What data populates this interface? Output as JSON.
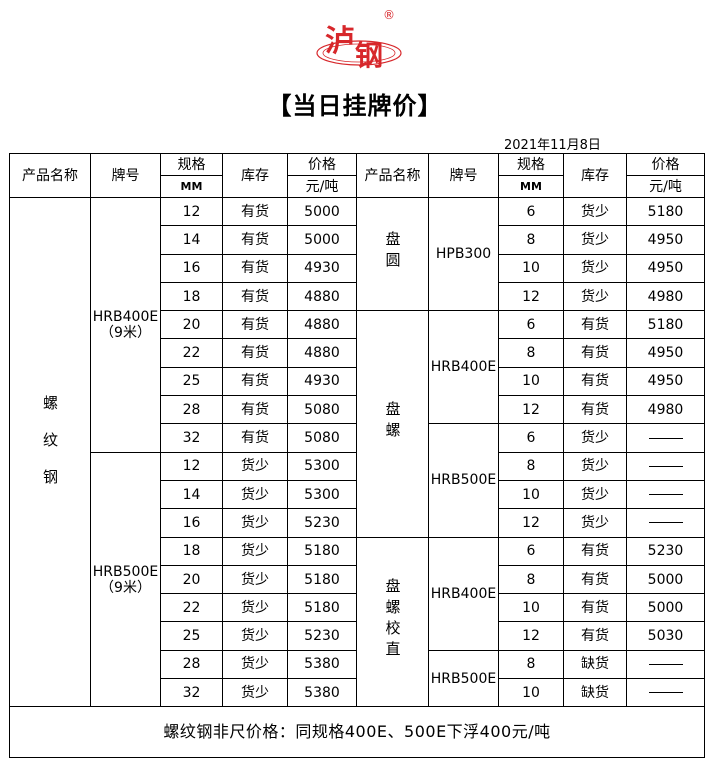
{
  "logo": {
    "text": "泸钢",
    "registered": "®",
    "color": "#d7272b"
  },
  "title": "【当日挂牌价】",
  "date": "2021年11月8日",
  "headers": {
    "product": "产品名称",
    "brand": "牌号",
    "spec": "规格",
    "spec_unit": "MM",
    "stock": "库存",
    "price": "价格",
    "price_unit": "元/吨"
  },
  "left": {
    "product": "螺纹钢",
    "groups": [
      {
        "brand": "HRB400E",
        "note": "（9米）",
        "rows": [
          [
            "12",
            "有货",
            "5000"
          ],
          [
            "14",
            "有货",
            "5000"
          ],
          [
            "16",
            "有货",
            "4930"
          ],
          [
            "18",
            "有货",
            "4880"
          ],
          [
            "20",
            "有货",
            "4880"
          ],
          [
            "22",
            "有货",
            "4880"
          ],
          [
            "25",
            "有货",
            "4930"
          ],
          [
            "28",
            "有货",
            "5080"
          ],
          [
            "32",
            "有货",
            "5080"
          ]
        ]
      },
      {
        "brand": "HRB500E",
        "note": "（9米）",
        "rows": [
          [
            "12",
            "货少",
            "5300"
          ],
          [
            "14",
            "货少",
            "5300"
          ],
          [
            "16",
            "货少",
            "5230"
          ],
          [
            "18",
            "货少",
            "5180"
          ],
          [
            "20",
            "货少",
            "5180"
          ],
          [
            "22",
            "货少",
            "5180"
          ],
          [
            "25",
            "货少",
            "5230"
          ],
          [
            "28",
            "货少",
            "5380"
          ],
          [
            "32",
            "货少",
            "5380"
          ]
        ]
      }
    ]
  },
  "right": {
    "products": [
      {
        "name": "盘圆",
        "brands": [
          {
            "brand": "HPB300",
            "rows": [
              [
                "6",
                "货少",
                "5180"
              ],
              [
                "8",
                "货少",
                "4950"
              ],
              [
                "10",
                "货少",
                "4950"
              ],
              [
                "12",
                "货少",
                "4980"
              ]
            ]
          }
        ]
      },
      {
        "name": "盘螺",
        "brands": [
          {
            "brand": "HRB400E",
            "rows": [
              [
                "6",
                "有货",
                "5180"
              ],
              [
                "8",
                "有货",
                "4950"
              ],
              [
                "10",
                "有货",
                "4950"
              ],
              [
                "12",
                "有货",
                "4980"
              ]
            ]
          },
          {
            "brand": "HRB500E",
            "rows": [
              [
                "6",
                "货少",
                "——"
              ],
              [
                "8",
                "货少",
                "——"
              ],
              [
                "10",
                "货少",
                "——"
              ],
              [
                "12",
                "货少",
                "——"
              ]
            ]
          }
        ]
      },
      {
        "name": "盘螺校直",
        "brands": [
          {
            "brand": "HRB400E",
            "rows": [
              [
                "6",
                "有货",
                "5230"
              ],
              [
                "8",
                "有货",
                "5000"
              ],
              [
                "10",
                "有货",
                "5000"
              ],
              [
                "12",
                "有货",
                "5030"
              ]
            ]
          },
          {
            "brand": "HRB500E",
            "rows": [
              [
                "8",
                "缺货",
                "——"
              ],
              [
                "10",
                "缺货",
                "——"
              ]
            ]
          }
        ]
      }
    ]
  },
  "footer": "螺纹钢非尺价格：同规格400E、500E下浮400元/吨"
}
